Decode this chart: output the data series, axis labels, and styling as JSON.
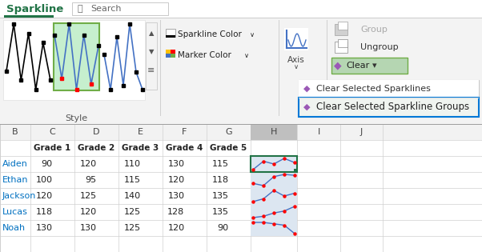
{
  "title": "Sparkline",
  "search_text": "Search",
  "style_text": "Style",
  "tab_color": "#217346",
  "green_underline": "#217346",
  "sparkline_color_text": "Sparkline Color",
  "marker_color_text": "Marker Color",
  "group_text": "Group",
  "ungroup_text": "Ungroup",
  "clear_text": "Clear",
  "axis_text": "Axis",
  "clear_selected_sparklines": "Clear Selected Sparklines",
  "clear_selected_groups": "Clear Selected Sparkline Groups",
  "col_headers": [
    "B",
    "C",
    "D",
    "E",
    "F",
    "G",
    "H",
    "I",
    "J"
  ],
  "data": [
    [
      90,
      120,
      110,
      130,
      115
    ],
    [
      100,
      95,
      115,
      120,
      118
    ],
    [
      120,
      125,
      140,
      130,
      135
    ],
    [
      118,
      120,
      125,
      128,
      135
    ],
    [
      130,
      130,
      125,
      120,
      90
    ]
  ],
  "names": [
    "Aiden",
    "Ethan",
    "Jackson",
    "Lucas",
    "Noah"
  ],
  "grade_labels": [
    "Grade 1",
    "Grade 2",
    "Grade 3",
    "Grade 4",
    "Grade 5"
  ],
  "sparkline_line_color": "#4472c4",
  "sparkline_marker_color": "#ff0000",
  "figure_bg": "#ffffff",
  "ribbon_bg": "#f3f3f3",
  "tab_bar_bg": "#ffffff",
  "grid_color": "#d0d0d0",
  "col_H_bg": "#c0c0c0",
  "sparkline_cell_bg": "#dce6f1",
  "sparkline_selected_border": "#217346",
  "name_color": "#0070c0",
  "dropdown_border": "#0078d7",
  "clear_btn_bg": "#b5d6b2",
  "clear_btn_border": "#70ad47",
  "menu_highlight_bg": "#f0f4f0",
  "dropdown_shadow": "#e0e0e0"
}
